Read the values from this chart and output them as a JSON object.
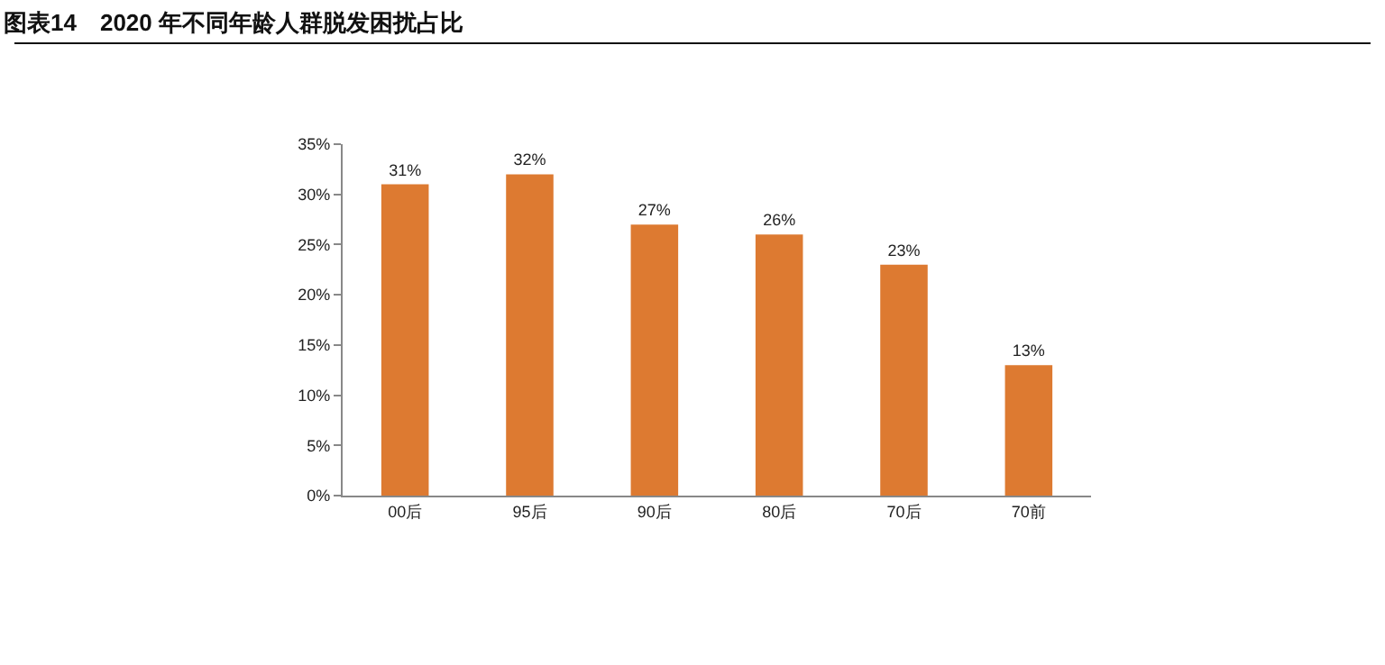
{
  "chart_data": {
    "type": "bar",
    "title": "图表14　2020 年不同年龄人群脱发困扰占比",
    "categories": [
      "00后",
      "95后",
      "90后",
      "80后",
      "70后",
      "70前"
    ],
    "values": [
      31,
      32,
      27,
      26,
      23,
      13
    ],
    "value_labels": [
      "31%",
      "32%",
      "27%",
      "26%",
      "23%",
      "13%"
    ],
    "color": "#dd7a31",
    "ylim": [
      0,
      35
    ],
    "yticks": [
      {
        "value": 0,
        "label": "0%"
      },
      {
        "value": 5,
        "label": "5%"
      },
      {
        "value": 10,
        "label": "10%"
      },
      {
        "value": 15,
        "label": "15%"
      },
      {
        "value": 20,
        "label": "20%"
      },
      {
        "value": 25,
        "label": "25%"
      },
      {
        "value": 30,
        "label": "30%"
      },
      {
        "value": 35,
        "label": "35%"
      }
    ],
    "grid": false,
    "legend": false
  }
}
